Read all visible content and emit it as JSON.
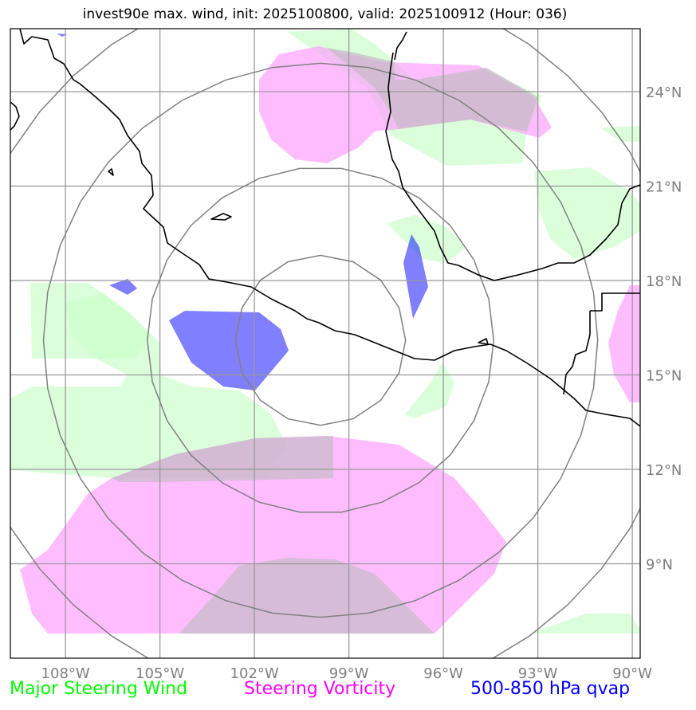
{
  "title": "invest90e max. wind, init: 2025100800, valid: 2025100912 (Hour: 036)",
  "map": {
    "lon_range": [
      -109.75,
      -89.75
    ],
    "lat_range": [
      6.0,
      26.0
    ],
    "lat_ticks": [
      {
        "value": 24,
        "label": "24°N"
      },
      {
        "value": 21,
        "label": "21°N"
      },
      {
        "value": 18,
        "label": "18°N"
      },
      {
        "value": 15,
        "label": "15°N"
      },
      {
        "value": 12,
        "label": "12°N"
      },
      {
        "value": 9,
        "label": "9°N"
      }
    ],
    "lon_ticks": [
      {
        "value": -108,
        "label": "108°W"
      },
      {
        "value": -105,
        "label": "105°W"
      },
      {
        "value": -102,
        "label": "102°W"
      },
      {
        "value": -99,
        "label": "99°W"
      },
      {
        "value": -96,
        "label": "96°W"
      },
      {
        "value": -93,
        "label": "93°W"
      },
      {
        "value": -90,
        "label": "90°W"
      }
    ],
    "storm_center": {
      "lon": -99.9,
      "lat": 16.1
    },
    "range_rings_deg": [
      2.7,
      5.5,
      8.8,
      11.5
    ],
    "colors": {
      "steering_wind": "#ccffcc",
      "steering_vorticity": "#ff99ff",
      "qvap": "#0000ff",
      "coastline": "#000000",
      "gridline": "#999999",
      "ring": "#808080"
    }
  },
  "legend": {
    "wind": {
      "label": "Major Steering Wind",
      "color": "#00ff00"
    },
    "vorticity": {
      "label": "Steering Vorticity",
      "color": "#ff00ff"
    },
    "qvap": {
      "label": "500-850 hPa qvap",
      "color": "#0000ff"
    }
  }
}
